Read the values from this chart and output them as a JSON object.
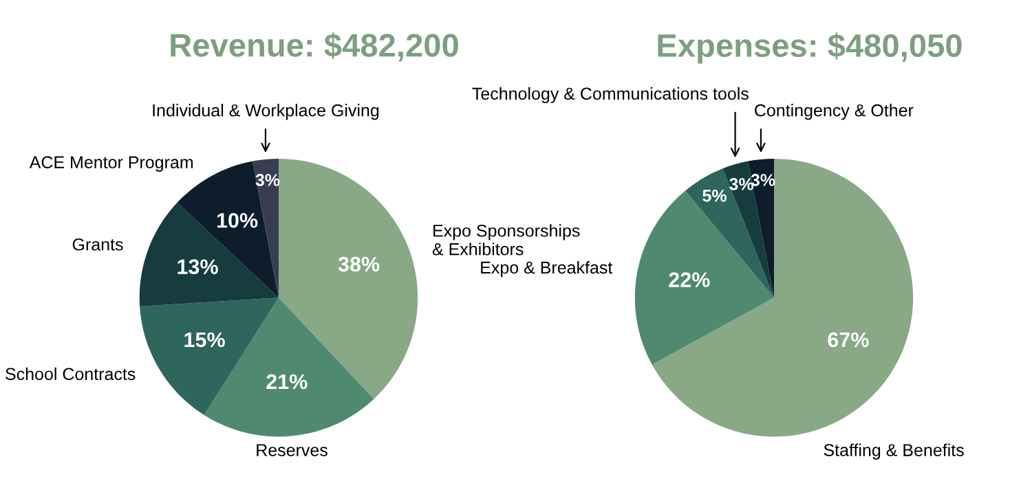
{
  "chart_data": [
    {
      "type": "pie",
      "title": "Revenue: $482,200",
      "categories": [
        "Expo Sponsorships\n& Exhibitors",
        "Reserves",
        "School Contracts",
        "Grants",
        "ACE Mentor Program",
        "Individual & Workplace Giving"
      ],
      "values": [
        38,
        21,
        15,
        13,
        10,
        3
      ],
      "value_labels": [
        "38%",
        "21%",
        "15%",
        "13%",
        "10%",
        "3%"
      ],
      "colors": [
        "#88a886",
        "#4f8a70",
        "#2e655d",
        "#163c3e",
        "#0d1d2b",
        "#383d52"
      ]
    },
    {
      "type": "pie",
      "title": "Expenses: $480,050",
      "categories": [
        "Staffing & Benefits",
        "Expo & Breakfast",
        null,
        "Technology & Communications tools",
        "Contingency & Other"
      ],
      "values": [
        67,
        22,
        5,
        3,
        3
      ],
      "value_labels": [
        "67%",
        "22%",
        "5%",
        "3%",
        "3%"
      ],
      "colors": [
        "#88a886",
        "#4f8a70",
        "#2e655d",
        "#163c3e",
        "#0d1d2b"
      ]
    }
  ]
}
